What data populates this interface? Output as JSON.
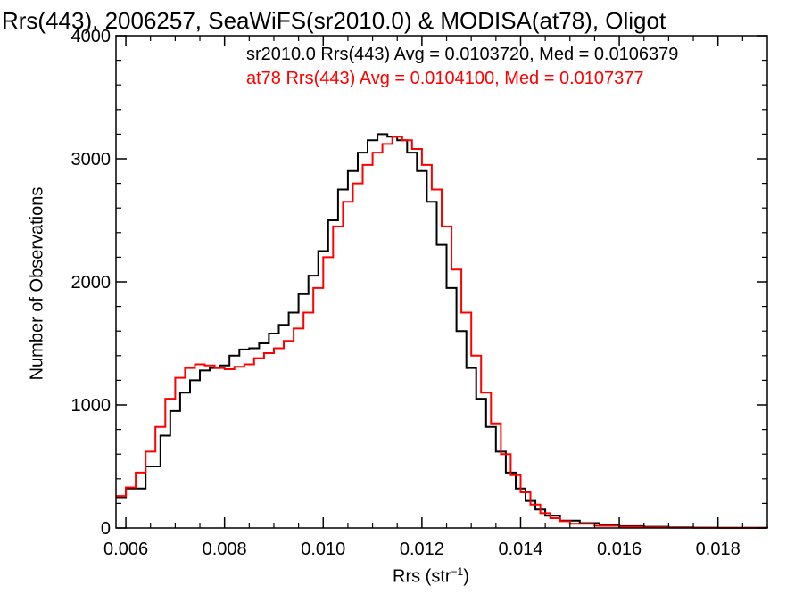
{
  "chart_data": {
    "type": "line",
    "title": "Rrs(443), 2006257, SeaWiFS(sr2010.0) & MODISA(at78), Oligot",
    "xlabel": "Rrs (str",
    "xlabel_superscript": "−1",
    "xlabel_close": ")",
    "ylabel": "Number of Observations",
    "xlim": [
      0.0058,
      0.019
    ],
    "ylim": [
      0,
      4000
    ],
    "x_ticks": [
      0.006,
      0.008,
      0.01,
      0.012,
      0.014,
      0.016,
      0.018
    ],
    "x_tick_labels": [
      "0.006",
      "0.008",
      "0.010",
      "0.012",
      "0.014",
      "0.016",
      "0.018"
    ],
    "y_ticks": [
      0,
      1000,
      2000,
      3000,
      4000
    ],
    "y_tick_labels": [
      "0",
      "1000",
      "2000",
      "3000",
      "4000"
    ],
    "grid": false,
    "series": [
      {
        "name": "sr2010.0 Rrs(443) Avg = 0.0103720, Med = 0.0106379",
        "color": "#000000",
        "x": [
          0.0058,
          0.006,
          0.0064,
          0.0067,
          0.0069,
          0.0071,
          0.0073,
          0.0075,
          0.0077,
          0.0079,
          0.0081,
          0.0083,
          0.0085,
          0.0087,
          0.0089,
          0.0091,
          0.0093,
          0.0095,
          0.0097,
          0.0099,
          0.0101,
          0.0103,
          0.0105,
          0.0107,
          0.0109,
          0.0111,
          0.0113,
          0.0115,
          0.0117,
          0.0119,
          0.0121,
          0.0123,
          0.0125,
          0.0127,
          0.0129,
          0.0131,
          0.0133,
          0.0135,
          0.0137,
          0.0139,
          0.0141,
          0.0143,
          0.0145,
          0.0148,
          0.0152,
          0.0156,
          0.016,
          0.0165,
          0.017,
          0.0175,
          0.018,
          0.019
        ],
        "y": [
          250,
          320,
          500,
          750,
          950,
          1100,
          1200,
          1280,
          1300,
          1320,
          1400,
          1450,
          1460,
          1500,
          1580,
          1650,
          1750,
          1900,
          2050,
          2250,
          2500,
          2750,
          2900,
          3050,
          3150,
          3200,
          3180,
          3150,
          3050,
          2900,
          2650,
          2300,
          1950,
          1600,
          1300,
          1050,
          820,
          620,
          450,
          320,
          220,
          150,
          100,
          60,
          40,
          25,
          15,
          10,
          5,
          3,
          2,
          1
        ]
      },
      {
        "name": "at78 Rrs(443) Avg = 0.0104100, Med = 0.0107377",
        "color": "#ff0000",
        "x": [
          0.0058,
          0.006,
          0.0062,
          0.0064,
          0.0066,
          0.0068,
          0.007,
          0.0072,
          0.0074,
          0.0076,
          0.0078,
          0.008,
          0.0082,
          0.0084,
          0.0086,
          0.0088,
          0.009,
          0.0092,
          0.0094,
          0.0096,
          0.0098,
          0.01,
          0.0102,
          0.0104,
          0.0106,
          0.0108,
          0.011,
          0.0112,
          0.0114,
          0.0116,
          0.0118,
          0.012,
          0.0122,
          0.0124,
          0.0126,
          0.0128,
          0.013,
          0.0132,
          0.0134,
          0.0136,
          0.0138,
          0.014,
          0.0142,
          0.0144,
          0.0146,
          0.0148,
          0.015,
          0.0155,
          0.016,
          0.0165,
          0.017,
          0.0175,
          0.018,
          0.019
        ],
        "y": [
          260,
          330,
          450,
          620,
          820,
          1050,
          1220,
          1300,
          1330,
          1320,
          1300,
          1290,
          1310,
          1330,
          1380,
          1420,
          1460,
          1520,
          1620,
          1750,
          1950,
          2200,
          2450,
          2650,
          2800,
          2950,
          3050,
          3120,
          3180,
          3150,
          3080,
          2950,
          2750,
          2450,
          2100,
          1750,
          1400,
          1100,
          850,
          600,
          430,
          290,
          190,
          120,
          80,
          55,
          35,
          18,
          10,
          6,
          3,
          2,
          1,
          1
        ]
      }
    ]
  }
}
